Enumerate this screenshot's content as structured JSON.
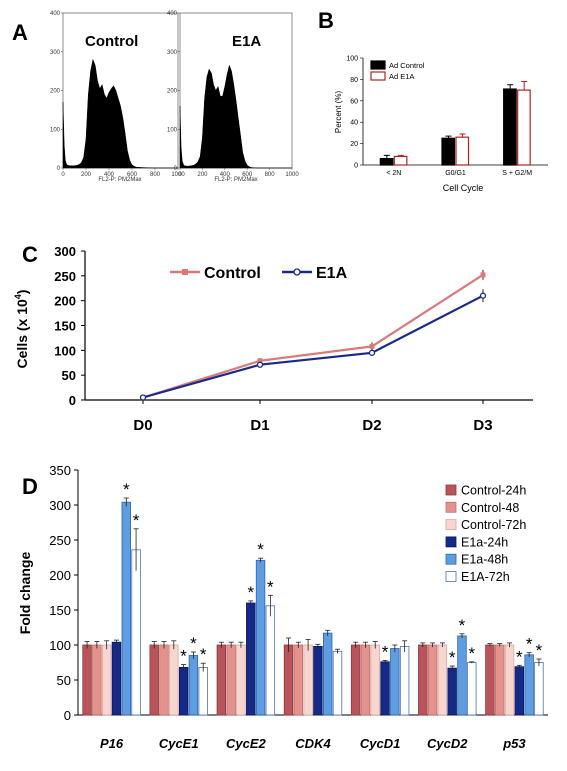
{
  "chart_data": [
    {
      "panel": "A",
      "type": "area",
      "histograms": [
        {
          "title": "Control",
          "xlabel": "FL2-P: PM2Max",
          "x_ticks": [
            0,
            200,
            400,
            600,
            800,
            1000
          ],
          "y_ticks": [
            0,
            100,
            200,
            300,
            400
          ],
          "xlim": [
            0,
            1000
          ],
          "ylim": [
            0,
            400
          ],
          "x": [
            0,
            10,
            20,
            30,
            40,
            60,
            80,
            100,
            120,
            140,
            160,
            180,
            200,
            220,
            240,
            260,
            280,
            300,
            320,
            340,
            360,
            380,
            400,
            420,
            440,
            460,
            480,
            500,
            520,
            540,
            560,
            580,
            600,
            620,
            640,
            700,
            800,
            900,
            1000
          ],
          "values": [
            170,
            60,
            20,
            10,
            7,
            6,
            6,
            6,
            7,
            9,
            14,
            28,
            75,
            190,
            250,
            280,
            265,
            225,
            205,
            215,
            190,
            180,
            195,
            205,
            212,
            200,
            180,
            160,
            130,
            90,
            45,
            20,
            8,
            4,
            2,
            1,
            0,
            0,
            0
          ]
        },
        {
          "title": "E1A",
          "xlabel": "FL2-P: PM2Max",
          "x_ticks": [
            0,
            200,
            400,
            600,
            800,
            1000
          ],
          "y_ticks": [
            0,
            100,
            200,
            300,
            400
          ],
          "xlim": [
            0,
            1000
          ],
          "ylim": [
            0,
            400
          ],
          "x": [
            0,
            10,
            20,
            30,
            40,
            60,
            80,
            100,
            120,
            140,
            160,
            180,
            200,
            220,
            240,
            260,
            280,
            300,
            320,
            340,
            360,
            380,
            400,
            420,
            440,
            460,
            480,
            500,
            520,
            540,
            560,
            580,
            600,
            620,
            640,
            700,
            800,
            900,
            1000
          ],
          "values": [
            160,
            55,
            18,
            9,
            6,
            5,
            5,
            6,
            7,
            10,
            16,
            30,
            80,
            180,
            235,
            255,
            245,
            215,
            200,
            210,
            185,
            185,
            210,
            240,
            265,
            250,
            215,
            175,
            130,
            85,
            40,
            18,
            7,
            3,
            1,
            0,
            0,
            0,
            0
          ]
        }
      ]
    },
    {
      "panel": "B",
      "type": "bar",
      "categories": [
        "< 2N",
        "G0/G1",
        "S + G2/M"
      ],
      "series": [
        {
          "name": "Ad Control",
          "values": [
            6,
            25,
            71
          ],
          "errors": [
            3,
            2,
            4
          ]
        },
        {
          "name": "Ad E1A",
          "values": [
            8,
            26,
            70
          ],
          "errors": [
            1,
            3,
            8
          ]
        }
      ],
      "xlabel": "Cell Cycle",
      "ylabel": "Percent (%)",
      "y_ticks": [
        0,
        20,
        40,
        60,
        80,
        100
      ],
      "ylim": [
        0,
        100
      ],
      "legend": "top-left"
    },
    {
      "panel": "C",
      "type": "line",
      "categories": [
        "D0",
        "D1",
        "D2",
        "D3"
      ],
      "series": [
        {
          "name": "Control",
          "values": [
            5,
            79,
            108,
            252
          ],
          "errors": [
            1,
            5,
            8,
            10
          ]
        },
        {
          "name": "E1A",
          "values": [
            5,
            71,
            95,
            210
          ],
          "errors": [
            1,
            4,
            6,
            13
          ]
        }
      ],
      "ylabel_main": "Cells (x 10",
      "ylabel_sup": "4",
      "ylabel_end": ")",
      "y_ticks": [
        0,
        50,
        100,
        150,
        200,
        250,
        300
      ],
      "ylim": [
        0,
        300
      ],
      "legend": "top-left"
    },
    {
      "panel": "D",
      "type": "bar",
      "categories": [
        "P16",
        "CycE1",
        "CycE2",
        "CDK4",
        "CycD1",
        "CycD2",
        "p53"
      ],
      "series": [
        {
          "name": "Control-24h",
          "values": [
            100,
            100,
            100,
            100,
            100,
            100,
            100
          ],
          "errors": [
            5,
            5,
            4,
            10,
            4,
            3,
            2
          ]
        },
        {
          "name": "Control-48",
          "values": [
            100,
            100,
            100,
            100,
            100,
            100,
            100
          ],
          "errors": [
            5,
            5,
            4,
            4,
            4,
            3,
            2
          ]
        },
        {
          "name": "Control-72h",
          "values": [
            100,
            100,
            100,
            100,
            100,
            100,
            100
          ],
          "errors": [
            6,
            6,
            4,
            8,
            5,
            3,
            3
          ]
        },
        {
          "name": "E1a-24h",
          "values": [
            104,
            68,
            160,
            98,
            76,
            67,
            69
          ],
          "errors": [
            3,
            4,
            3,
            3,
            2,
            3,
            2
          ]
        },
        {
          "name": "E1a-48h",
          "values": [
            304,
            85,
            221,
            117,
            95,
            113,
            86
          ],
          "errors": [
            6,
            5,
            3,
            4,
            5,
            3,
            3
          ]
        },
        {
          "name": "E1A-72h",
          "values": [
            236,
            68,
            156,
            91,
            98,
            75,
            75
          ],
          "errors": [
            30,
            6,
            15,
            3,
            8,
            1,
            5
          ]
        }
      ],
      "significance": [
        [
          false,
          false,
          false,
          false,
          true,
          true
        ],
        [
          false,
          false,
          false,
          true,
          true,
          true
        ],
        [
          false,
          false,
          false,
          true,
          true,
          true
        ],
        [
          false,
          false,
          false,
          false,
          false,
          false
        ],
        [
          false,
          false,
          false,
          true,
          false,
          false
        ],
        [
          false,
          false,
          false,
          true,
          true,
          true
        ],
        [
          false,
          false,
          false,
          true,
          true,
          true
        ]
      ],
      "marker": "*",
      "ylabel": "Fold change",
      "y_ticks": [
        0,
        50,
        100,
        150,
        200,
        250,
        300,
        350
      ],
      "ylim": [
        0,
        350
      ],
      "legend": "top-right"
    }
  ],
  "panel_labels": {
    "a": "A",
    "b": "B",
    "c": "C",
    "d": "D"
  },
  "colors": {
    "hist_fill": "#000000",
    "b_control": "#000000",
    "b_e1a": "#b22222",
    "c_control": "#d97a7a",
    "c_e1a": "#1a2a8c",
    "d_series": [
      "#b9545a",
      "#e4928e",
      "#f7d6cf",
      "#152a86",
      "#5f9de0",
      "#ffffff"
    ],
    "d_strokes": [
      "#8a3a3e",
      "#c06e6a",
      "#d6a9a1",
      "#0c1a5e",
      "#2c66b0",
      "#4a72b8"
    ]
  }
}
